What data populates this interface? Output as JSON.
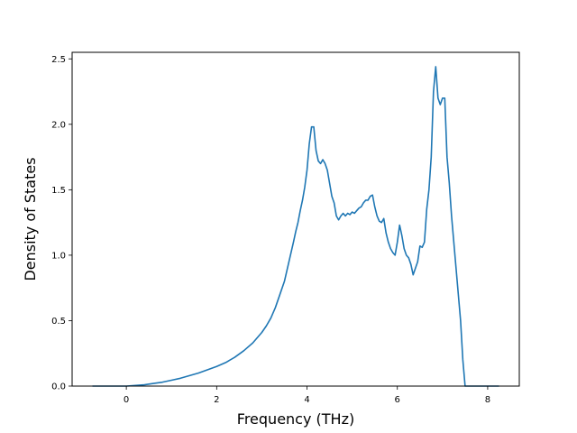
{
  "chart_data": {
    "type": "line",
    "title": "",
    "xlabel": "Frequency (THz)",
    "ylabel": "Density of States",
    "xlim": [
      -1.2,
      8.7
    ],
    "ylim": [
      0.0,
      2.55
    ],
    "xticks": [
      0,
      2,
      4,
      6,
      8
    ],
    "xtick_labels": [
      "0",
      "2",
      "4",
      "6",
      "8"
    ],
    "yticks": [
      0.0,
      0.5,
      1.0,
      1.5,
      2.0,
      2.5
    ],
    "ytick_labels": [
      "0.0",
      "0.5",
      "1.0",
      "1.5",
      "2.0",
      "2.5"
    ],
    "grid": false,
    "legend": "none",
    "series": [
      {
        "color": "#1f77b4",
        "x": [
          -0.75,
          0.0,
          0.2,
          0.4,
          0.6,
          0.8,
          1.0,
          1.2,
          1.4,
          1.6,
          1.8,
          2.0,
          2.2,
          2.4,
          2.6,
          2.8,
          3.0,
          3.1,
          3.2,
          3.3,
          3.4,
          3.5,
          3.6,
          3.7,
          3.75,
          3.8,
          3.85,
          3.9,
          3.95,
          4.0,
          4.05,
          4.1,
          4.15,
          4.2,
          4.25,
          4.3,
          4.35,
          4.4,
          4.45,
          4.5,
          4.55,
          4.6,
          4.65,
          4.7,
          4.75,
          4.8,
          4.85,
          4.9,
          4.95,
          5.0,
          5.05,
          5.1,
          5.15,
          5.2,
          5.25,
          5.3,
          5.35,
          5.4,
          5.45,
          5.5,
          5.55,
          5.6,
          5.65,
          5.7,
          5.75,
          5.8,
          5.85,
          5.9,
          5.95,
          6.0,
          6.05,
          6.1,
          6.15,
          6.2,
          6.25,
          6.3,
          6.35,
          6.4,
          6.45,
          6.5,
          6.55,
          6.6,
          6.65,
          6.7,
          6.75,
          6.8,
          6.85,
          6.9,
          6.95,
          7.0,
          7.05,
          7.1,
          7.15,
          7.2,
          7.25,
          7.3,
          7.35,
          7.4,
          7.45,
          7.5,
          7.55,
          8.0,
          8.25
        ],
        "y": [
          0.0,
          0.0,
          0.005,
          0.01,
          0.02,
          0.03,
          0.045,
          0.06,
          0.08,
          0.1,
          0.125,
          0.15,
          0.18,
          0.22,
          0.27,
          0.33,
          0.41,
          0.46,
          0.52,
          0.6,
          0.7,
          0.8,
          0.95,
          1.1,
          1.18,
          1.25,
          1.34,
          1.42,
          1.52,
          1.65,
          1.85,
          1.98,
          1.98,
          1.8,
          1.72,
          1.7,
          1.73,
          1.7,
          1.65,
          1.55,
          1.45,
          1.4,
          1.3,
          1.27,
          1.3,
          1.32,
          1.3,
          1.32,
          1.31,
          1.33,
          1.32,
          1.34,
          1.36,
          1.37,
          1.4,
          1.42,
          1.42,
          1.45,
          1.46,
          1.37,
          1.3,
          1.26,
          1.25,
          1.28,
          1.17,
          1.1,
          1.05,
          1.02,
          1.0,
          1.1,
          1.23,
          1.15,
          1.05,
          1.0,
          0.98,
          0.93,
          0.85,
          0.9,
          0.95,
          1.07,
          1.06,
          1.1,
          1.35,
          1.5,
          1.75,
          2.25,
          2.44,
          2.2,
          2.15,
          2.2,
          2.2,
          1.75,
          1.55,
          1.3,
          1.1,
          0.9,
          0.7,
          0.5,
          0.2,
          0.0,
          0.0,
          0.0,
          0.0
        ]
      }
    ]
  }
}
